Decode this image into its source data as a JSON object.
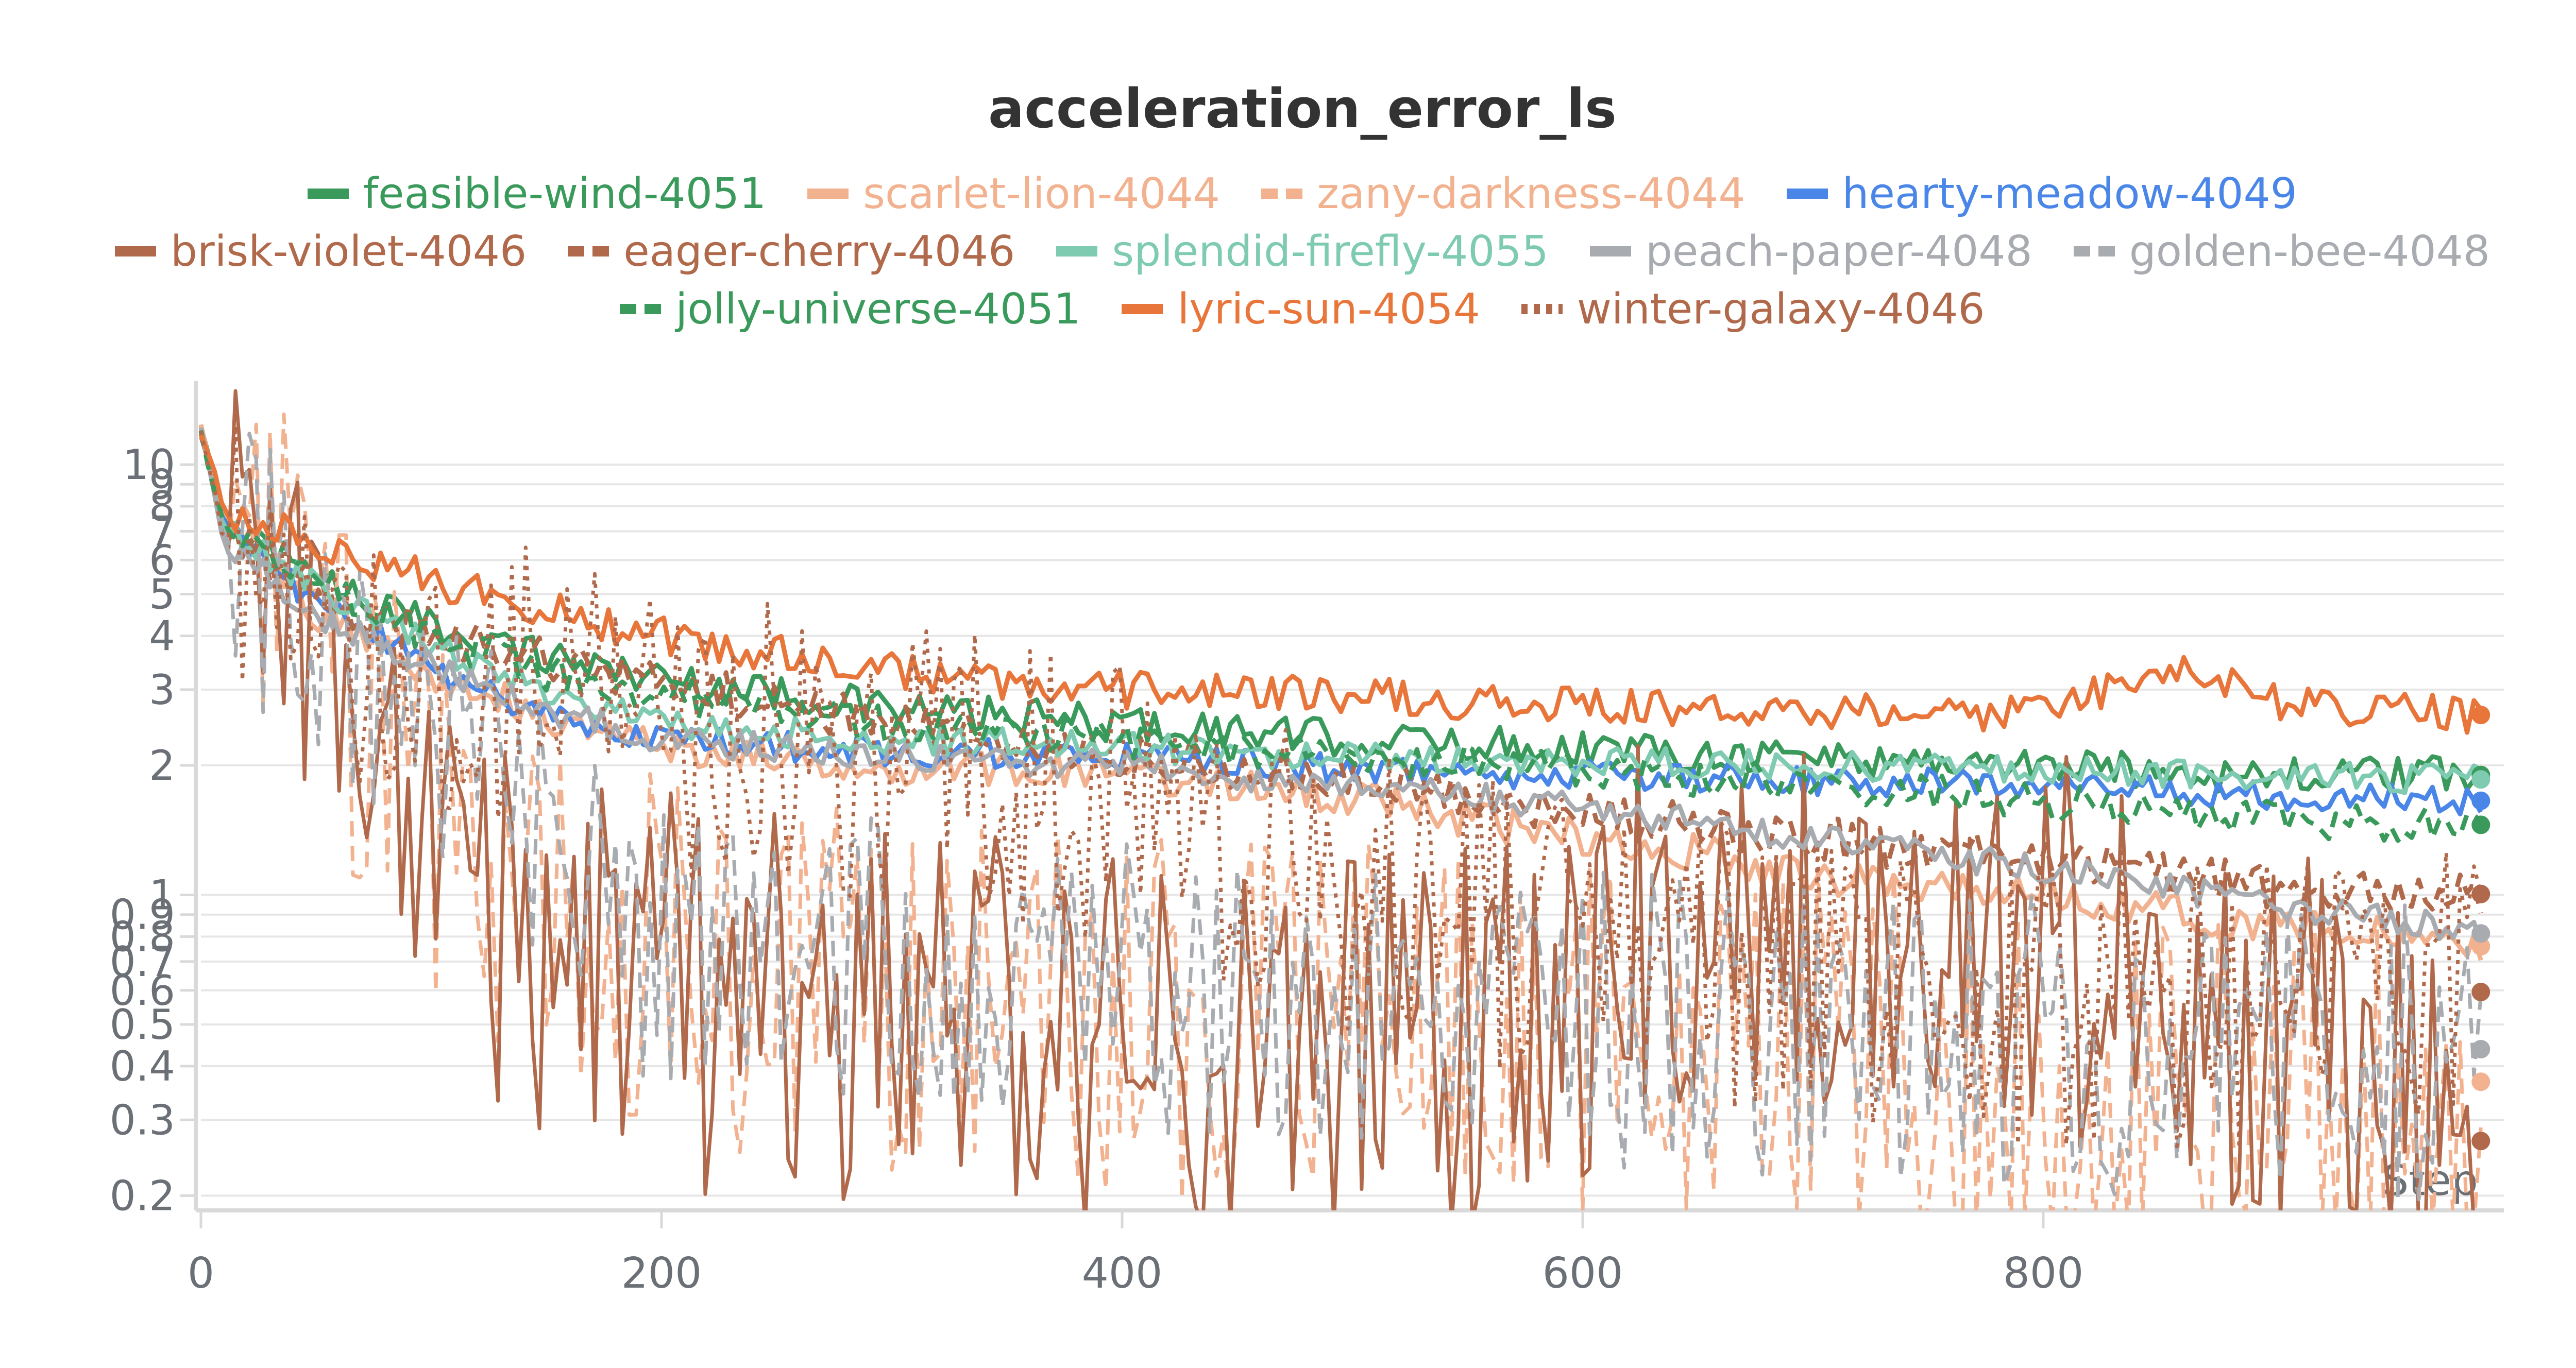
{
  "chart_data": {
    "type": "line",
    "title": "acceleration_error_ls",
    "xlabel": "Step",
    "ylabel": "",
    "yscale": "log",
    "xlim": [
      0,
      1000
    ],
    "ylim": [
      0.19,
      14
    ],
    "x_ticks": [
      0,
      200,
      400,
      600,
      800
    ],
    "y_ticks": [
      0.2,
      0.3,
      0.4,
      0.5,
      0.6,
      0.7,
      0.8,
      0.9,
      1,
      2,
      3,
      4,
      5,
      6,
      7,
      8,
      9,
      10
    ],
    "y_tick_labels": [
      "0.2",
      "0.3",
      "0.4",
      "0.5",
      "0.6",
      "0.7",
      "0.8",
      "0.9",
      "1",
      "2",
      "3",
      "4",
      "5",
      "6",
      "7",
      "8",
      "9",
      "10"
    ],
    "grid": true,
    "legend_position": "top",
    "series": [
      {
        "name": "feasible-wind-4051",
        "color": "#3a9a5b",
        "dash": "solid",
        "noise": 0.05,
        "points": [
          [
            0,
            12
          ],
          [
            10,
            7.5
          ],
          [
            50,
            5.5
          ],
          [
            100,
            4.2
          ],
          [
            150,
            3.6
          ],
          [
            200,
            3.2
          ],
          [
            300,
            2.7
          ],
          [
            400,
            2.5
          ],
          [
            500,
            2.3
          ],
          [
            600,
            2.2
          ],
          [
            700,
            2.1
          ],
          [
            800,
            2.0
          ],
          [
            900,
            1.9
          ],
          [
            1000,
            1.9
          ]
        ]
      },
      {
        "name": "scarlet-lion-4044",
        "color": "#f2b290",
        "dash": "solid",
        "noise": 0.05,
        "points": [
          [
            0,
            12
          ],
          [
            10,
            7.5
          ],
          [
            50,
            4.5
          ],
          [
            100,
            3.3
          ],
          [
            150,
            2.6
          ],
          [
            200,
            2.2
          ],
          [
            300,
            2.0
          ],
          [
            400,
            1.9
          ],
          [
            500,
            1.7
          ],
          [
            550,
            1.5
          ],
          [
            600,
            1.35
          ],
          [
            650,
            1.25
          ],
          [
            700,
            1.1
          ],
          [
            800,
            1.0
          ],
          [
            900,
            0.85
          ],
          [
            1000,
            0.75
          ]
        ]
      },
      {
        "name": "zany-darkness-4044",
        "color": "#f2b290",
        "dash": "dashed",
        "noise": 0.5,
        "points": [
          [
            0,
            12
          ],
          [
            10,
            7
          ],
          [
            50,
            4
          ],
          [
            100,
            1.5
          ],
          [
            150,
            0.9
          ],
          [
            200,
            0.7
          ],
          [
            300,
            0.6
          ],
          [
            400,
            0.5
          ],
          [
            500,
            0.5
          ],
          [
            600,
            0.45
          ],
          [
            700,
            0.42
          ],
          [
            800,
            0.38
          ],
          [
            900,
            0.35
          ],
          [
            1000,
            0.37
          ]
        ]
      },
      {
        "name": "hearty-meadow-4049",
        "color": "#4a86e8",
        "dash": "solid",
        "noise": 0.04,
        "points": [
          [
            0,
            12
          ],
          [
            10,
            7
          ],
          [
            50,
            4.8
          ],
          [
            100,
            3.4
          ],
          [
            150,
            2.6
          ],
          [
            200,
            2.3
          ],
          [
            300,
            2.15
          ],
          [
            400,
            2.1
          ],
          [
            500,
            1.95
          ],
          [
            600,
            1.9
          ],
          [
            700,
            1.85
          ],
          [
            800,
            1.8
          ],
          [
            900,
            1.7
          ],
          [
            1000,
            1.65
          ]
        ]
      },
      {
        "name": "brisk-violet-4046",
        "color": "#b0694a",
        "dash": "solid",
        "noise": 0.55,
        "points": [
          [
            0,
            12
          ],
          [
            10,
            6.5
          ],
          [
            50,
            3.5
          ],
          [
            100,
            1.5
          ],
          [
            150,
            0.65
          ],
          [
            200,
            0.6
          ],
          [
            300,
            0.5
          ],
          [
            400,
            0.45
          ],
          [
            500,
            0.42
          ],
          [
            600,
            0.45
          ],
          [
            620,
            0.8
          ],
          [
            700,
            0.85
          ],
          [
            800,
            0.75
          ],
          [
            900,
            0.5
          ],
          [
            1000,
            0.25
          ]
        ]
      },
      {
        "name": "eager-cherry-4046",
        "color": "#b0694a",
        "dash": "dashed",
        "noise": 0.06,
        "points": [
          [
            0,
            12
          ],
          [
            10,
            7
          ],
          [
            50,
            5
          ],
          [
            100,
            4
          ],
          [
            200,
            3.1
          ],
          [
            300,
            2.5
          ],
          [
            400,
            2.1
          ],
          [
            500,
            1.85
          ],
          [
            600,
            1.55
          ],
          [
            700,
            1.35
          ],
          [
            800,
            1.2
          ],
          [
            900,
            1.05
          ],
          [
            1000,
            1.0
          ]
        ]
      },
      {
        "name": "splendid-firefly-4055",
        "color": "#7fcbb2",
        "dash": "solid",
        "noise": 0.04,
        "points": [
          [
            0,
            12
          ],
          [
            10,
            7.2
          ],
          [
            50,
            5.2
          ],
          [
            100,
            3.8
          ],
          [
            150,
            3.0
          ],
          [
            200,
            2.5
          ],
          [
            300,
            2.3
          ],
          [
            400,
            2.2
          ],
          [
            500,
            2.1
          ],
          [
            600,
            2.05
          ],
          [
            700,
            2.0
          ],
          [
            800,
            1.95
          ],
          [
            900,
            1.9
          ],
          [
            1000,
            1.85
          ]
        ]
      },
      {
        "name": "peach-paper-4048",
        "color": "#a8abb0",
        "dash": "solid",
        "noise": 0.04,
        "points": [
          [
            0,
            12
          ],
          [
            10,
            6.5
          ],
          [
            50,
            4.5
          ],
          [
            100,
            3.4
          ],
          [
            150,
            2.7
          ],
          [
            200,
            2.3
          ],
          [
            300,
            2.1
          ],
          [
            400,
            2.0
          ],
          [
            500,
            1.8
          ],
          [
            600,
            1.6
          ],
          [
            700,
            1.35
          ],
          [
            800,
            1.15
          ],
          [
            900,
            0.95
          ],
          [
            1000,
            0.8
          ]
        ]
      },
      {
        "name": "golden-bee-4048",
        "color": "#a8abb0",
        "dash": "dashed",
        "noise": 0.4,
        "points": [
          [
            0,
            12
          ],
          [
            10,
            6.8
          ],
          [
            50,
            4.2
          ],
          [
            100,
            2.5
          ],
          [
            150,
            1.2
          ],
          [
            200,
            0.75
          ],
          [
            300,
            0.68
          ],
          [
            400,
            0.62
          ],
          [
            500,
            0.58
          ],
          [
            600,
            0.52
          ],
          [
            700,
            0.48
          ],
          [
            800,
            0.45
          ],
          [
            900,
            0.42
          ],
          [
            1000,
            0.44
          ]
        ]
      },
      {
        "name": "jolly-universe-4051",
        "color": "#3a9a5b",
        "dash": "dashed",
        "noise": 0.05,
        "points": [
          [
            0,
            12
          ],
          [
            10,
            7.4
          ],
          [
            50,
            5.3
          ],
          [
            100,
            4.0
          ],
          [
            150,
            3.3
          ],
          [
            200,
            2.9
          ],
          [
            300,
            2.5
          ],
          [
            400,
            2.3
          ],
          [
            500,
            2.1
          ],
          [
            600,
            1.95
          ],
          [
            700,
            1.8
          ],
          [
            800,
            1.65
          ],
          [
            900,
            1.5
          ],
          [
            1000,
            1.45
          ]
        ]
      },
      {
        "name": "lyric-sun-4054",
        "color": "#e8753a",
        "dash": "solid",
        "noise": 0.05,
        "points": [
          [
            0,
            12
          ],
          [
            10,
            7.8
          ],
          [
            50,
            6.5
          ],
          [
            100,
            5.4
          ],
          [
            150,
            4.6
          ],
          [
            200,
            4.0
          ],
          [
            300,
            3.3
          ],
          [
            400,
            3.0
          ],
          [
            500,
            2.9
          ],
          [
            600,
            2.75
          ],
          [
            700,
            2.7
          ],
          [
            800,
            2.65
          ],
          [
            860,
            3.5
          ],
          [
            900,
            2.8
          ],
          [
            1000,
            2.6
          ]
        ]
      },
      {
        "name": "winter-galaxy-4046",
        "color": "#b0694a",
        "dash": "dotted",
        "noise": 0.4,
        "points": [
          [
            0,
            12
          ],
          [
            10,
            6.8
          ],
          [
            50,
            4.3
          ],
          [
            100,
            3.2
          ],
          [
            200,
            2.5
          ],
          [
            300,
            2.1
          ],
          [
            400,
            1.6
          ],
          [
            500,
            1.0
          ],
          [
            600,
            0.75
          ],
          [
            700,
            0.62
          ],
          [
            800,
            0.58
          ],
          [
            900,
            0.55
          ],
          [
            1000,
            0.6
          ]
        ]
      }
    ]
  }
}
